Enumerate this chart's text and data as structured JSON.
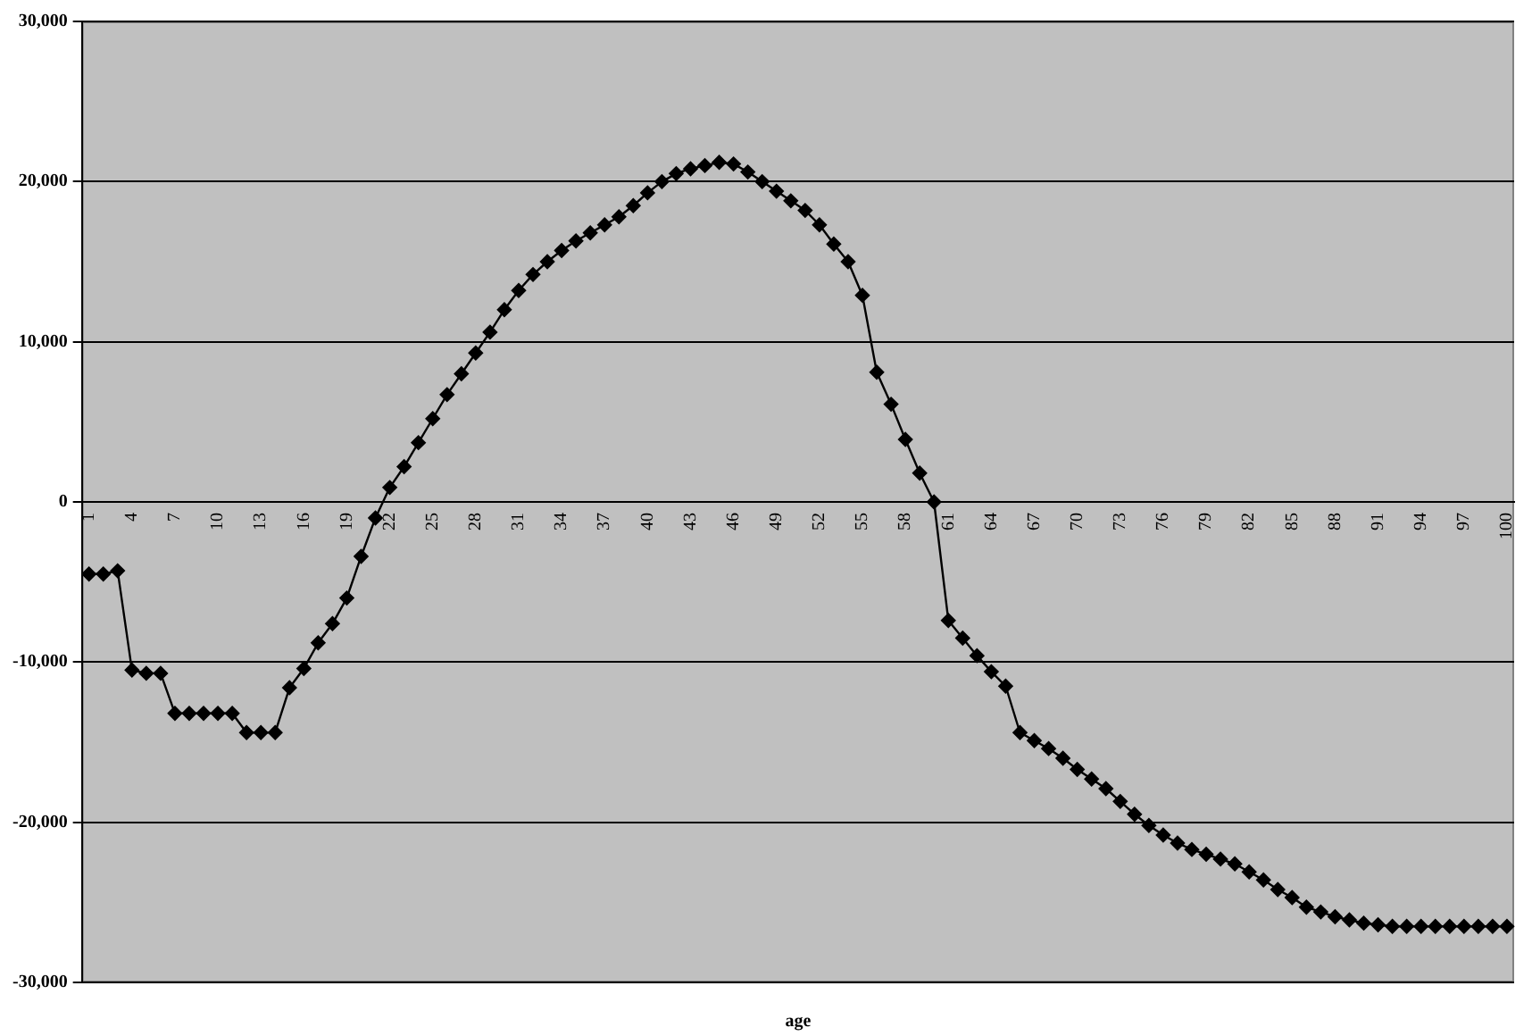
{
  "chart_data": {
    "type": "line",
    "xlabel": "age",
    "categories": [
      "1",
      null,
      null,
      "4",
      null,
      null,
      "7",
      null,
      null,
      "10",
      null,
      null,
      "13",
      null,
      null,
      "16",
      null,
      null,
      "19",
      null,
      null,
      "22",
      null,
      null,
      "25",
      null,
      null,
      "28",
      null,
      null,
      "31",
      null,
      null,
      "34",
      null,
      null,
      "37",
      null,
      null,
      "40",
      null,
      null,
      "43",
      null,
      null,
      "46",
      null,
      null,
      "49",
      null,
      null,
      "52",
      null,
      null,
      "55",
      null,
      null,
      "58",
      null,
      null,
      "61",
      null,
      null,
      "64",
      null,
      null,
      "67",
      null,
      null,
      "70",
      null,
      null,
      "73",
      null,
      null,
      "76",
      null,
      null,
      "79",
      null,
      null,
      "82",
      null,
      null,
      "85",
      null,
      null,
      "88",
      null,
      null,
      "91",
      null,
      null,
      "94",
      null,
      null,
      "97",
      null,
      null,
      "100"
    ],
    "series": [
      {
        "color": "#000000",
        "values": [
          -4500,
          -4500,
          -4300,
          -10500,
          -10700,
          -10700,
          -13200,
          -13200,
          -13200,
          -13200,
          -13200,
          -14400,
          -14400,
          -14400,
          -11600,
          -10400,
          -8800,
          -7600,
          -6000,
          -3400,
          -1000,
          900,
          2200,
          3700,
          5200,
          6700,
          8000,
          9300,
          10600,
          12000,
          13200,
          14200,
          15000,
          15700,
          16300,
          16800,
          17300,
          17800,
          18500,
          19300,
          20000,
          20500,
          20800,
          21000,
          21200,
          21100,
          20600,
          20000,
          19400,
          18800,
          18200,
          17300,
          16100,
          15000,
          12900,
          8100,
          6100,
          3900,
          1800,
          0,
          -7400,
          -8500,
          -9600,
          -10600,
          -11500,
          -14400,
          -14900,
          -15400,
          -16000,
          -16700,
          -17300,
          -17900,
          -18700,
          -19500,
          -20200,
          -20800,
          -21300,
          -21700,
          -22000,
          -22300,
          -22600,
          -23100,
          -23600,
          -24200,
          -24700,
          -25300,
          -25600,
          -25900,
          -26100,
          -26300,
          -26400,
          -26500,
          -26500,
          -26500,
          -26500,
          -26500,
          -26500,
          -26500,
          -26500,
          -26500
        ]
      }
    ],
    "ylim": [
      -30000,
      30000
    ],
    "yticks": [
      {
        "value": -30000,
        "label": "-30,000"
      },
      {
        "value": -20000,
        "label": "-20,000"
      },
      {
        "value": -10000,
        "label": "-10,000"
      },
      0,
      {
        "value": 10000,
        "label": "10,000"
      },
      {
        "value": 20000,
        "label": "20,000"
      },
      {
        "value": 30000,
        "label": "30,000"
      }
    ],
    "grid": "y",
    "legend": false,
    "marker": "diamond",
    "line_style": "solid"
  }
}
